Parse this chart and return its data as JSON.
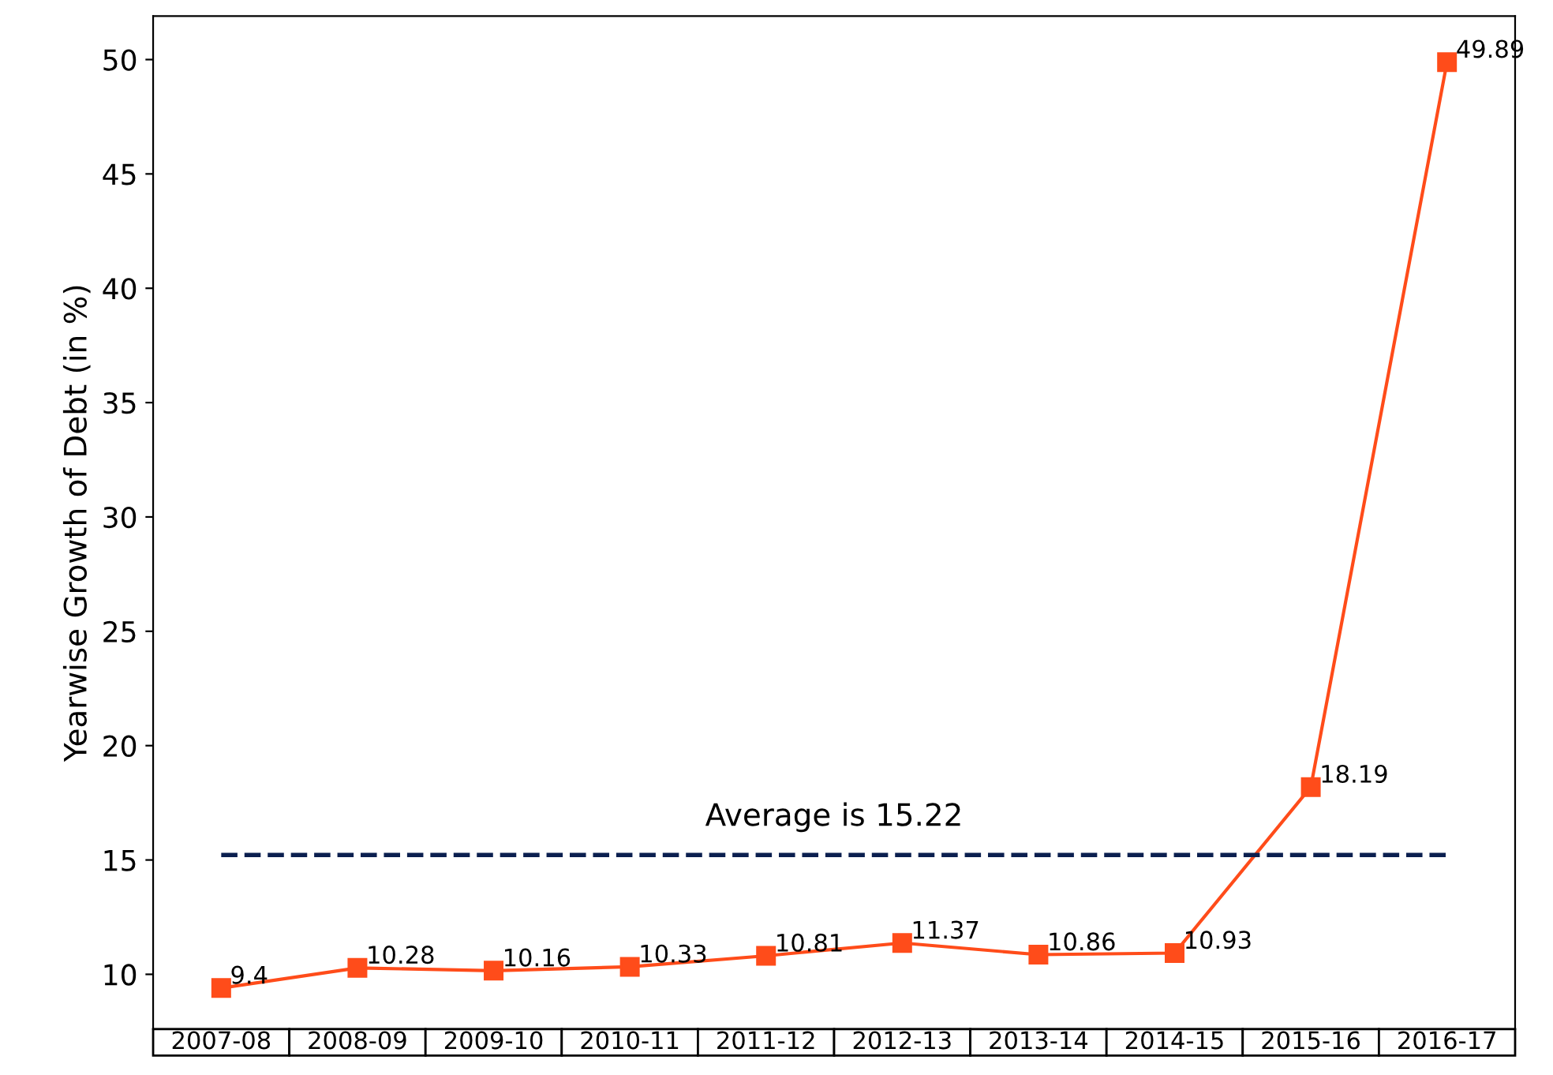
{
  "chart_data": {
    "type": "line",
    "ylabel": "Yearwise Growth of Debt (in %)",
    "categories": [
      "2007-08",
      "2008-09",
      "2009-10",
      "2010-11",
      "2011-12",
      "2012-13",
      "2013-14",
      "2014-15",
      "2015-16",
      "2016-17"
    ],
    "series": [
      {
        "color": "#ff4c1a",
        "values": [
          9.4,
          10.28,
          10.16,
          10.33,
          10.81,
          11.37,
          10.86,
          10.93,
          18.19,
          49.89
        ]
      }
    ],
    "marker": "square",
    "line_style": "solid",
    "data_labels": true,
    "grid": false,
    "legend": false,
    "ylim": [
      7.6,
      51.9
    ],
    "yticks": [
      10,
      15,
      20,
      25,
      30,
      35,
      40,
      45,
      50
    ],
    "ref_lines": [
      {
        "axis": "y",
        "value": 15.22,
        "label": "Average is 15.22",
        "color": "#0b1f4f",
        "line_style": "dashed"
      }
    ]
  }
}
